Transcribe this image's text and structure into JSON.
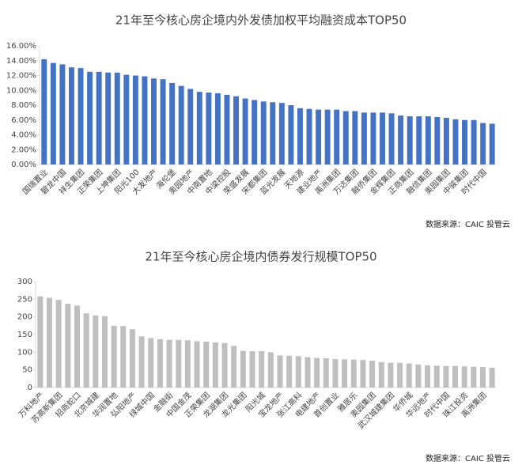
{
  "chart_data": [
    {
      "type": "bar",
      "title": "21年至今核心房企境内外发债加权平均融资成本TOP50",
      "source": "数据来源：CAIC 投管云",
      "color": "#4472c4",
      "grid": false,
      "categories": [
        "国瑞置业",
        null,
        "碧龙中国",
        null,
        "祥生集团",
        null,
        "正荣集团",
        null,
        "上坤集团",
        null,
        "阳光100",
        null,
        "大发地产",
        null,
        "海伦堡",
        null,
        "奥园地产",
        null,
        "中南置地",
        null,
        "中梁控股",
        null,
        "荣盛发展",
        null,
        "宋都集团",
        null,
        "蓝光发展",
        null,
        "天地源",
        null,
        "建业地产",
        null,
        "禹洲集团",
        null,
        "万达集团",
        null,
        "融侨集团",
        null,
        "金辉集团",
        null,
        "正商集团",
        null,
        "融信集团",
        null,
        "奥园集团",
        null,
        "中骏集团",
        null,
        "时代中国",
        null
      ],
      "values": [
        14.2,
        13.7,
        13.5,
        13.1,
        13.0,
        12.5,
        12.5,
        12.4,
        12.4,
        12.1,
        12.0,
        11.9,
        11.6,
        11.5,
        11.0,
        10.6,
        10.2,
        9.8,
        9.7,
        9.6,
        9.4,
        9.2,
        8.9,
        8.7,
        8.5,
        8.4,
        8.3,
        8.0,
        7.6,
        7.5,
        7.4,
        7.4,
        7.4,
        7.2,
        7.2,
        7.0,
        7.0,
        7.0,
        6.9,
        6.6,
        6.5,
        6.5,
        6.5,
        6.4,
        6.3,
        6.1,
        6.0,
        6.0,
        5.6,
        5.5
      ],
      "ylim": [
        0,
        16
      ],
      "yticks": [
        {
          "value": 0,
          "label": "0.00%"
        },
        {
          "value": 2,
          "label": "2.00%"
        },
        {
          "value": 4,
          "label": "4.00%"
        },
        {
          "value": 6,
          "label": "6.00%"
        },
        {
          "value": 8,
          "label": "8.00%"
        },
        {
          "value": 10,
          "label": "10.00%"
        },
        {
          "value": 12,
          "label": "12.00%"
        },
        {
          "value": 14,
          "label": "14.00%"
        },
        {
          "value": 16,
          "label": "16.00%"
        }
      ]
    },
    {
      "type": "bar",
      "title": "21年至今核心房企境内债券发行规模TOP50",
      "source": "数据来源：CAIC 投管云",
      "color": "#bfbfbf",
      "grid": false,
      "categories": [
        "万科地产",
        null,
        "苏高新集团",
        null,
        "招商蛇口",
        null,
        "北京城建",
        null,
        "华润置地",
        null,
        "弘阳地产",
        null,
        "绿城中国",
        null,
        "金融街",
        null,
        "中国金茂",
        null,
        "正荣集团",
        null,
        "龙湖集团",
        null,
        "龙光集团",
        null,
        "阳光城",
        null,
        "宝龙地产",
        null,
        "张江高科",
        null,
        "电建地产",
        null,
        "首创置业",
        null,
        "雅居乐",
        null,
        "奥园集团",
        null,
        "武汉城建集团",
        null,
        "华侨城",
        null,
        "华远地产",
        null,
        "时代中国",
        null,
        "珠江投资",
        null,
        "禹洲集团",
        null
      ],
      "values": [
        258,
        254,
        248,
        237,
        232,
        210,
        204,
        202,
        175,
        174,
        165,
        145,
        140,
        137,
        135,
        135,
        134,
        131,
        130,
        128,
        126,
        118,
        104,
        103,
        103,
        100,
        91,
        90,
        89,
        86,
        84,
        83,
        81,
        80,
        79,
        78,
        76,
        72,
        70,
        70,
        68,
        65,
        63,
        62,
        61,
        61,
        60,
        59,
        58,
        56
      ],
      "ylim": [
        0,
        300
      ],
      "yticks": [
        0,
        50,
        100,
        150,
        200,
        250,
        300
      ]
    }
  ]
}
